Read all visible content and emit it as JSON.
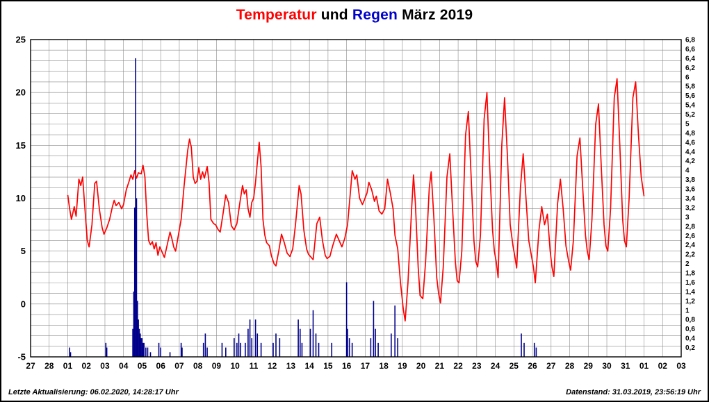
{
  "title": {
    "part1": "Temperatur",
    "part2": " und ",
    "part3": "Regen",
    "part4": " März 2019"
  },
  "footer": {
    "left": "Letzte Aktualisierung: 06.02.2020, 14:28:17 Uhr",
    "right": "Datenstand: 31.03.2019, 23:56:19 Uhr"
  },
  "colors": {
    "temperature": "#ff0000",
    "rain": "#00008b",
    "grid": "#8a8a8a",
    "axis": "#000000",
    "background": "#ffffff",
    "title_red": "#ff0000",
    "title_blue": "#0000cc"
  },
  "chart_data": {
    "type": "line",
    "title": "Temperatur und Regen März 2019",
    "x_tick_labels": [
      "27",
      "28",
      "01",
      "02",
      "03",
      "04",
      "05",
      "06",
      "07",
      "08",
      "09",
      "10",
      "11",
      "12",
      "13",
      "14",
      "15",
      "16",
      "17",
      "18",
      "19",
      "20",
      "21",
      "22",
      "23",
      "24",
      "25",
      "26",
      "27",
      "28",
      "29",
      "30",
      "31",
      "01",
      "02",
      "03"
    ],
    "y_left": {
      "min": -5,
      "max": 25,
      "ticks": [
        25,
        20,
        15,
        10,
        5,
        0,
        -5
      ]
    },
    "y_right": {
      "min": 0,
      "max": 6.8,
      "tick_step": 0.2,
      "decimal_separator": ","
    },
    "grid": {
      "x_step_days": 1,
      "y_step_temp": 1
    },
    "series": [
      {
        "name": "Temperatur",
        "type": "line",
        "color": "#ff0000",
        "points": [
          [
            2.0,
            10.3
          ],
          [
            2.1,
            9.0
          ],
          [
            2.2,
            8.0
          ],
          [
            2.35,
            9.2
          ],
          [
            2.45,
            8.3
          ],
          [
            2.6,
            11.8
          ],
          [
            2.7,
            11.2
          ],
          [
            2.8,
            12.0
          ],
          [
            2.9,
            9.5
          ],
          [
            3.05,
            6.0
          ],
          [
            3.15,
            5.4
          ],
          [
            3.3,
            7.5
          ],
          [
            3.45,
            11.4
          ],
          [
            3.55,
            11.6
          ],
          [
            3.7,
            9.0
          ],
          [
            3.85,
            7.2
          ],
          [
            3.95,
            6.6
          ],
          [
            4.1,
            7.2
          ],
          [
            4.25,
            8.0
          ],
          [
            4.4,
            9.2
          ],
          [
            4.5,
            9.8
          ],
          [
            4.6,
            9.3
          ],
          [
            4.75,
            9.6
          ],
          [
            4.9,
            9.0
          ],
          [
            5.0,
            9.4
          ],
          [
            5.15,
            10.8
          ],
          [
            5.3,
            11.6
          ],
          [
            5.4,
            12.2
          ],
          [
            5.5,
            11.8
          ],
          [
            5.6,
            12.6
          ],
          [
            5.7,
            11.9
          ],
          [
            5.8,
            12.4
          ],
          [
            5.95,
            12.3
          ],
          [
            6.05,
            13.1
          ],
          [
            6.15,
            12.0
          ],
          [
            6.25,
            8.5
          ],
          [
            6.35,
            6.0
          ],
          [
            6.45,
            5.6
          ],
          [
            6.55,
            5.9
          ],
          [
            6.65,
            5.2
          ],
          [
            6.75,
            5.8
          ],
          [
            6.85,
            4.6
          ],
          [
            6.95,
            5.4
          ],
          [
            7.1,
            4.8
          ],
          [
            7.2,
            4.4
          ],
          [
            7.35,
            5.6
          ],
          [
            7.5,
            6.8
          ],
          [
            7.6,
            6.2
          ],
          [
            7.7,
            5.4
          ],
          [
            7.8,
            5.0
          ],
          [
            7.95,
            6.5
          ],
          [
            8.1,
            8.0
          ],
          [
            8.25,
            11.0
          ],
          [
            8.45,
            14.5
          ],
          [
            8.55,
            15.6
          ],
          [
            8.65,
            14.8
          ],
          [
            8.75,
            12.0
          ],
          [
            8.85,
            11.4
          ],
          [
            8.95,
            11.6
          ],
          [
            9.05,
            12.9
          ],
          [
            9.15,
            11.8
          ],
          [
            9.25,
            12.5
          ],
          [
            9.35,
            11.9
          ],
          [
            9.5,
            13.0
          ],
          [
            9.6,
            11.5
          ],
          [
            9.7,
            8.0
          ],
          [
            9.85,
            7.6
          ],
          [
            9.95,
            7.5
          ],
          [
            10.1,
            7.0
          ],
          [
            10.2,
            6.8
          ],
          [
            10.35,
            8.5
          ],
          [
            10.5,
            10.3
          ],
          [
            10.65,
            9.6
          ],
          [
            10.8,
            7.4
          ],
          [
            10.95,
            7.0
          ],
          [
            11.1,
            7.6
          ],
          [
            11.25,
            9.5
          ],
          [
            11.4,
            11.2
          ],
          [
            11.5,
            10.4
          ],
          [
            11.6,
            10.8
          ],
          [
            11.7,
            9.0
          ],
          [
            11.8,
            8.2
          ],
          [
            11.9,
            9.6
          ],
          [
            12.0,
            10.0
          ],
          [
            12.1,
            11.5
          ],
          [
            12.3,
            15.3
          ],
          [
            12.4,
            13.0
          ],
          [
            12.5,
            8.0
          ],
          [
            12.6,
            6.5
          ],
          [
            12.7,
            5.8
          ],
          [
            12.85,
            5.5
          ],
          [
            12.95,
            4.6
          ],
          [
            13.1,
            3.8
          ],
          [
            13.2,
            3.6
          ],
          [
            13.35,
            5.0
          ],
          [
            13.5,
            6.6
          ],
          [
            13.65,
            5.8
          ],
          [
            13.8,
            4.8
          ],
          [
            13.95,
            4.5
          ],
          [
            14.1,
            5.2
          ],
          [
            14.25,
            7.5
          ],
          [
            14.45,
            11.2
          ],
          [
            14.55,
            10.4
          ],
          [
            14.7,
            7.0
          ],
          [
            14.85,
            5.2
          ],
          [
            14.95,
            4.7
          ],
          [
            15.1,
            4.4
          ],
          [
            15.2,
            4.2
          ],
          [
            15.4,
            7.6
          ],
          [
            15.55,
            8.2
          ],
          [
            15.7,
            6.0
          ],
          [
            15.85,
            4.6
          ],
          [
            15.95,
            4.3
          ],
          [
            16.1,
            4.5
          ],
          [
            16.25,
            5.5
          ],
          [
            16.45,
            6.6
          ],
          [
            16.6,
            6.0
          ],
          [
            16.75,
            5.4
          ],
          [
            16.9,
            6.2
          ],
          [
            17.05,
            7.5
          ],
          [
            17.2,
            10.5
          ],
          [
            17.3,
            12.6
          ],
          [
            17.45,
            11.8
          ],
          [
            17.55,
            12.2
          ],
          [
            17.7,
            10.0
          ],
          [
            17.85,
            9.4
          ],
          [
            17.95,
            9.8
          ],
          [
            18.1,
            10.5
          ],
          [
            18.2,
            11.5
          ],
          [
            18.35,
            10.8
          ],
          [
            18.5,
            9.7
          ],
          [
            18.6,
            10.2
          ],
          [
            18.75,
            8.8
          ],
          [
            18.9,
            8.5
          ],
          [
            19.05,
            9.0
          ],
          [
            19.2,
            11.8
          ],
          [
            19.35,
            10.5
          ],
          [
            19.5,
            9.0
          ],
          [
            19.6,
            6.5
          ],
          [
            19.75,
            5.2
          ],
          [
            19.9,
            2.0
          ],
          [
            20.05,
            -0.5
          ],
          [
            20.15,
            -1.6
          ],
          [
            20.3,
            2.0
          ],
          [
            20.5,
            9.0
          ],
          [
            20.6,
            12.2
          ],
          [
            20.7,
            9.5
          ],
          [
            20.85,
            3.5
          ],
          [
            20.95,
            0.8
          ],
          [
            21.1,
            0.5
          ],
          [
            21.25,
            4.0
          ],
          [
            21.45,
            11.0
          ],
          [
            21.55,
            12.5
          ],
          [
            21.7,
            8.0
          ],
          [
            21.85,
            2.5
          ],
          [
            21.95,
            1.0
          ],
          [
            22.05,
            0.1
          ],
          [
            22.2,
            3.5
          ],
          [
            22.4,
            12.0
          ],
          [
            22.55,
            14.2
          ],
          [
            22.7,
            9.0
          ],
          [
            22.85,
            4.0
          ],
          [
            22.95,
            2.2
          ],
          [
            23.05,
            2.0
          ],
          [
            23.2,
            5.0
          ],
          [
            23.4,
            16.0
          ],
          [
            23.55,
            18.2
          ],
          [
            23.7,
            12.0
          ],
          [
            23.85,
            6.0
          ],
          [
            23.95,
            4.0
          ],
          [
            24.05,
            3.5
          ],
          [
            24.2,
            6.5
          ],
          [
            24.4,
            17.5
          ],
          [
            24.55,
            20.0
          ],
          [
            24.7,
            13.0
          ],
          [
            24.85,
            7.0
          ],
          [
            24.95,
            5.0
          ],
          [
            25.05,
            4.0
          ],
          [
            25.15,
            2.5
          ],
          [
            25.35,
            15.0
          ],
          [
            25.5,
            19.5
          ],
          [
            25.65,
            14.0
          ],
          [
            25.8,
            7.5
          ],
          [
            25.95,
            5.5
          ],
          [
            26.05,
            4.5
          ],
          [
            26.15,
            3.4
          ],
          [
            26.35,
            11.0
          ],
          [
            26.5,
            14.2
          ],
          [
            26.65,
            10.0
          ],
          [
            26.8,
            6.0
          ],
          [
            26.95,
            4.5
          ],
          [
            27.05,
            3.5
          ],
          [
            27.15,
            2.0
          ],
          [
            27.35,
            7.0
          ],
          [
            27.5,
            9.2
          ],
          [
            27.65,
            7.5
          ],
          [
            27.8,
            8.5
          ],
          [
            27.95,
            5.0
          ],
          [
            28.05,
            3.5
          ],
          [
            28.15,
            2.6
          ],
          [
            28.35,
            9.5
          ],
          [
            28.5,
            11.8
          ],
          [
            28.65,
            9.0
          ],
          [
            28.8,
            5.5
          ],
          [
            28.95,
            4.0
          ],
          [
            29.05,
            3.2
          ],
          [
            29.2,
            6.0
          ],
          [
            29.4,
            14.0
          ],
          [
            29.55,
            15.7
          ],
          [
            29.7,
            11.0
          ],
          [
            29.85,
            6.5
          ],
          [
            29.95,
            5.0
          ],
          [
            30.05,
            4.2
          ],
          [
            30.2,
            8.0
          ],
          [
            30.4,
            17.0
          ],
          [
            30.55,
            18.9
          ],
          [
            30.7,
            13.0
          ],
          [
            30.85,
            7.5
          ],
          [
            30.95,
            5.5
          ],
          [
            31.05,
            5.0
          ],
          [
            31.2,
            9.0
          ],
          [
            31.4,
            19.5
          ],
          [
            31.55,
            21.3
          ],
          [
            31.7,
            15.0
          ],
          [
            31.85,
            8.0
          ],
          [
            31.95,
            6.0
          ],
          [
            32.05,
            5.4
          ],
          [
            32.2,
            10.0
          ],
          [
            32.4,
            19.5
          ],
          [
            32.55,
            21.0
          ],
          [
            32.7,
            16.0
          ],
          [
            32.85,
            12.0
          ],
          [
            33.0,
            10.2
          ]
        ]
      },
      {
        "name": "Regen",
        "type": "bar",
        "color": "#00008b",
        "points": [
          [
            2.1,
            0.2
          ],
          [
            2.15,
            0.1
          ],
          [
            4.05,
            0.3
          ],
          [
            4.1,
            0.2
          ],
          [
            5.5,
            0.6
          ],
          [
            5.55,
            1.4
          ],
          [
            5.6,
            3.2
          ],
          [
            5.65,
            6.4
          ],
          [
            5.7,
            3.4
          ],
          [
            5.75,
            1.2
          ],
          [
            5.8,
            0.8
          ],
          [
            5.85,
            0.6
          ],
          [
            5.9,
            0.5
          ],
          [
            5.95,
            0.4
          ],
          [
            6.0,
            0.4
          ],
          [
            6.05,
            0.3
          ],
          [
            6.1,
            0.3
          ],
          [
            6.2,
            0.2
          ],
          [
            6.3,
            0.2
          ],
          [
            6.45,
            0.1
          ],
          [
            6.9,
            0.3
          ],
          [
            7.0,
            0.2
          ],
          [
            7.5,
            0.1
          ],
          [
            8.1,
            0.3
          ],
          [
            8.15,
            0.2
          ],
          [
            9.3,
            0.3
          ],
          [
            9.4,
            0.5
          ],
          [
            9.5,
            0.2
          ],
          [
            10.3,
            0.3
          ],
          [
            10.5,
            0.2
          ],
          [
            10.95,
            0.4
          ],
          [
            11.1,
            0.3
          ],
          [
            11.2,
            0.5
          ],
          [
            11.3,
            0.3
          ],
          [
            11.55,
            0.3
          ],
          [
            11.7,
            0.6
          ],
          [
            11.8,
            0.8
          ],
          [
            11.9,
            0.4
          ],
          [
            12.1,
            0.8
          ],
          [
            12.2,
            0.5
          ],
          [
            12.4,
            0.3
          ],
          [
            13.05,
            0.3
          ],
          [
            13.2,
            0.5
          ],
          [
            13.4,
            0.4
          ],
          [
            14.4,
            0.8
          ],
          [
            14.5,
            0.6
          ],
          [
            14.6,
            0.3
          ],
          [
            15.05,
            0.6
          ],
          [
            15.2,
            1.0
          ],
          [
            15.35,
            0.5
          ],
          [
            15.5,
            0.3
          ],
          [
            16.2,
            0.3
          ],
          [
            17.0,
            1.6
          ],
          [
            17.05,
            0.6
          ],
          [
            17.15,
            0.4
          ],
          [
            17.3,
            0.3
          ],
          [
            18.3,
            0.4
          ],
          [
            18.45,
            1.2
          ],
          [
            18.55,
            0.6
          ],
          [
            18.7,
            0.3
          ],
          [
            19.4,
            0.5
          ],
          [
            19.6,
            1.1
          ],
          [
            19.75,
            0.4
          ],
          [
            26.4,
            0.5
          ],
          [
            26.55,
            0.3
          ],
          [
            27.1,
            0.3
          ],
          [
            27.2,
            0.2
          ]
        ]
      }
    ]
  }
}
